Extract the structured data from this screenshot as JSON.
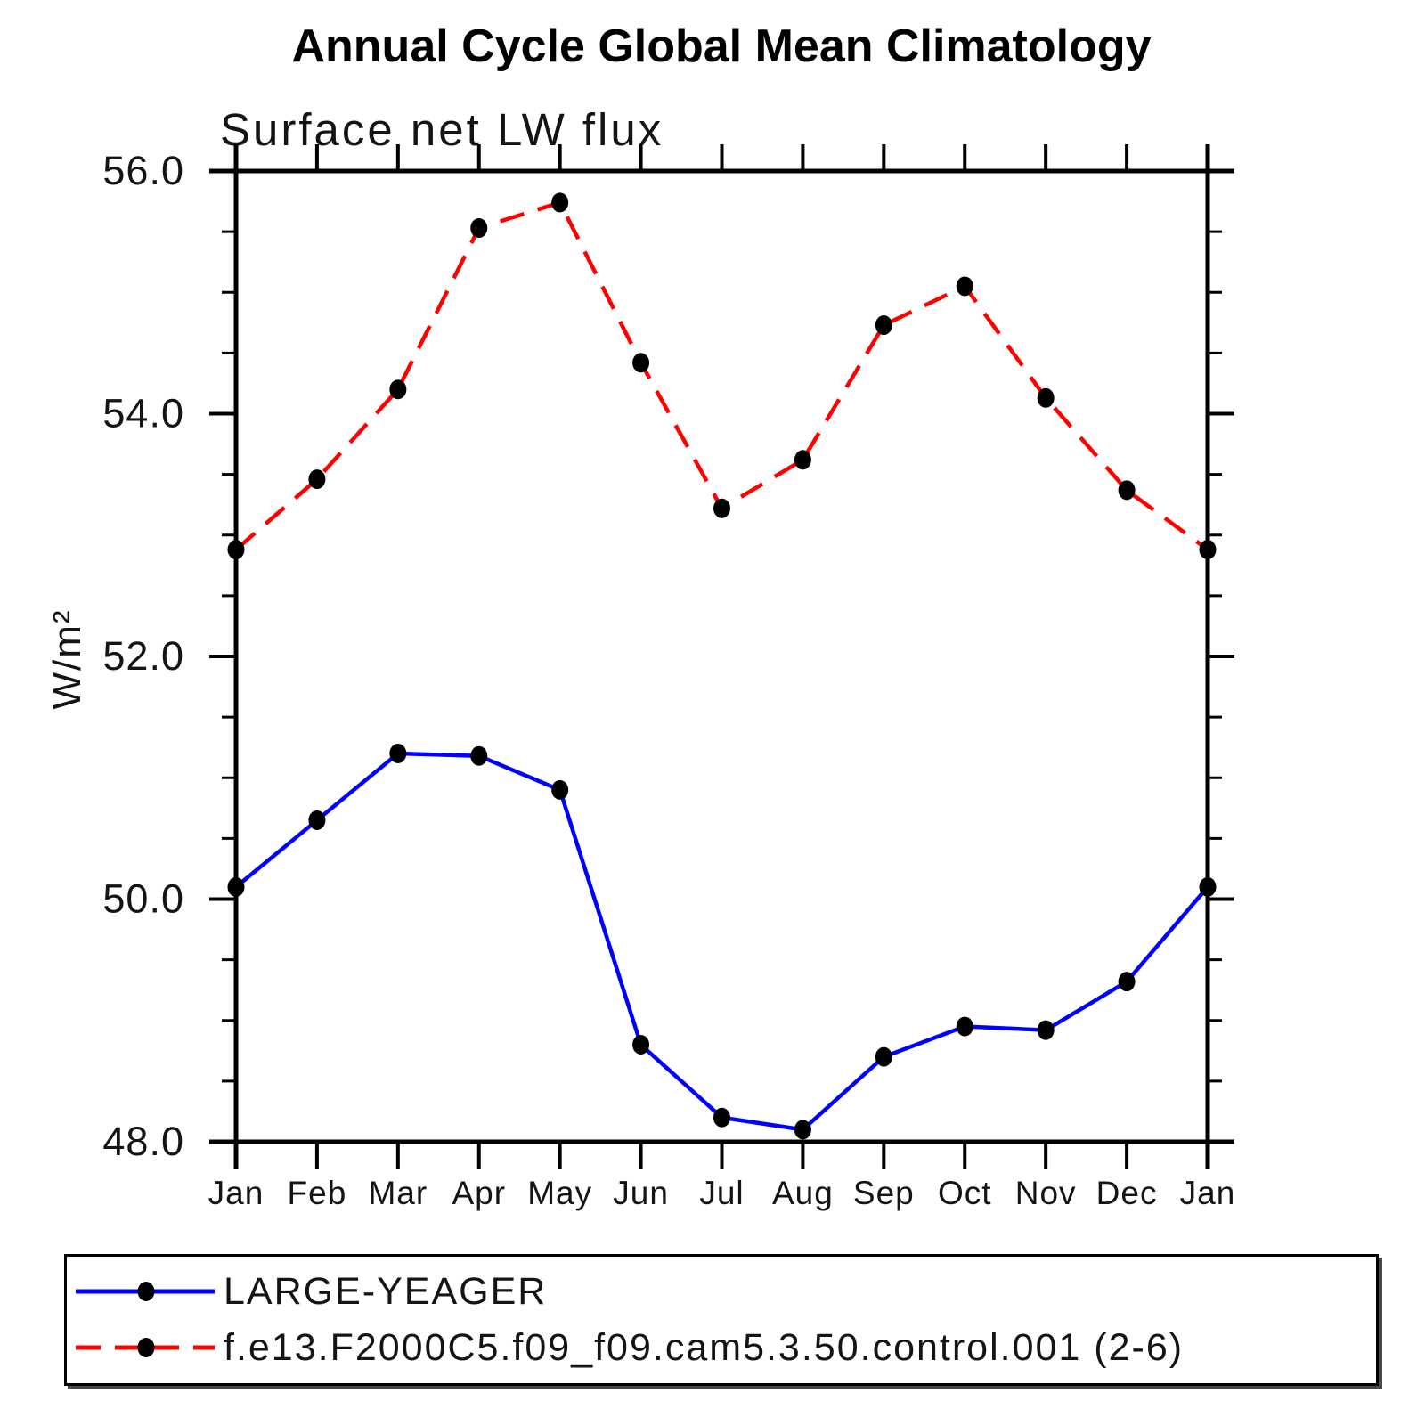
{
  "chart": {
    "title": "Annual Cycle Global Mean Climatology",
    "subtitle": "Surface net LW flux",
    "y_axis_title": "W/m²",
    "legend": [
      {
        "label": "LARGE-YEAGER",
        "color": "#0000ff",
        "line_style": "solid",
        "marker": "filled-black-circle"
      },
      {
        "label": "f.e13.F2000C5.f09_f09.cam5.3.50.control.001 (2-6)",
        "color": "#ff0000",
        "line_style": "dashed",
        "marker": "filled-black-circle"
      }
    ]
  },
  "chart_data": {
    "type": "line",
    "title": "Annual Cycle Global Mean Climatology",
    "subtitle": "Surface net LW flux",
    "xlabel": "",
    "ylabel": "W/m²",
    "categories": [
      "Jan",
      "Feb",
      "Mar",
      "Apr",
      "May",
      "Jun",
      "Jul",
      "Aug",
      "Sep",
      "Oct",
      "Nov",
      "Dec",
      "Jan"
    ],
    "series": [
      {
        "name": "LARGE-YEAGER",
        "color": "#0000ff",
        "line_style": "solid",
        "marker": "filled-black-circle",
        "values": [
          50.1,
          50.65,
          51.2,
          51.18,
          50.9,
          48.8,
          48.2,
          48.1,
          48.7,
          48.95,
          48.92,
          49.32,
          50.1
        ]
      },
      {
        "name": "f.e13.F2000C5.f09_f09.cam5.3.50.control.001 (2-6)",
        "color": "#ff0000",
        "line_style": "dashed",
        "marker": "filled-black-circle",
        "values": [
          52.88,
          53.46,
          54.2,
          55.53,
          55.74,
          54.42,
          53.22,
          53.62,
          54.73,
          55.05,
          54.13,
          53.37,
          52.88
        ]
      }
    ],
    "ylim": [
      48.0,
      56.0
    ],
    "yticks_major": [
      48.0,
      50.0,
      52.0,
      54.0,
      56.0
    ],
    "ytick_labels": [
      "48.0",
      "50.0",
      "52.0",
      "54.0",
      "56.0"
    ],
    "ytick_minor_step": 0.5,
    "grid": false,
    "legend_position": "bottom-left-box",
    "axis_color": "#000000"
  }
}
